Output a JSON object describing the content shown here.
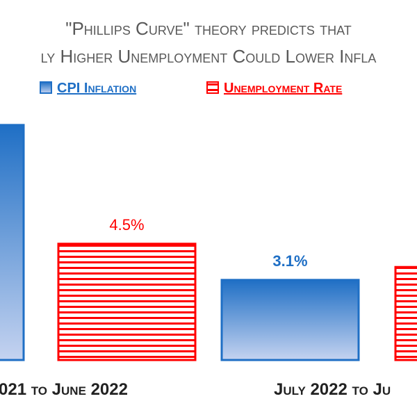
{
  "chart_data": {
    "type": "bar",
    "title_lines": [
      "\"Phillips Curve\" theory predicts that",
      "ly Higher Unemployment Could Lower Infla"
    ],
    "categories": [
      "021 to June 2022",
      "July 2022 to Ju"
    ],
    "series": [
      {
        "name": "CPI Inflation",
        "values": [
          9.1,
          3.1
        ],
        "labels": [
          "",
          "3.1%"
        ],
        "color": "#1f6fc5",
        "style": "gradient"
      },
      {
        "name": "Unemployment Rate",
        "values": [
          4.5,
          3.6
        ],
        "labels": [
          "4.5%",
          ""
        ],
        "color": "#ff0000",
        "style": "striped"
      }
    ],
    "ylim": [
      0,
      9.5
    ],
    "legend_position": "top",
    "grid": false
  }
}
